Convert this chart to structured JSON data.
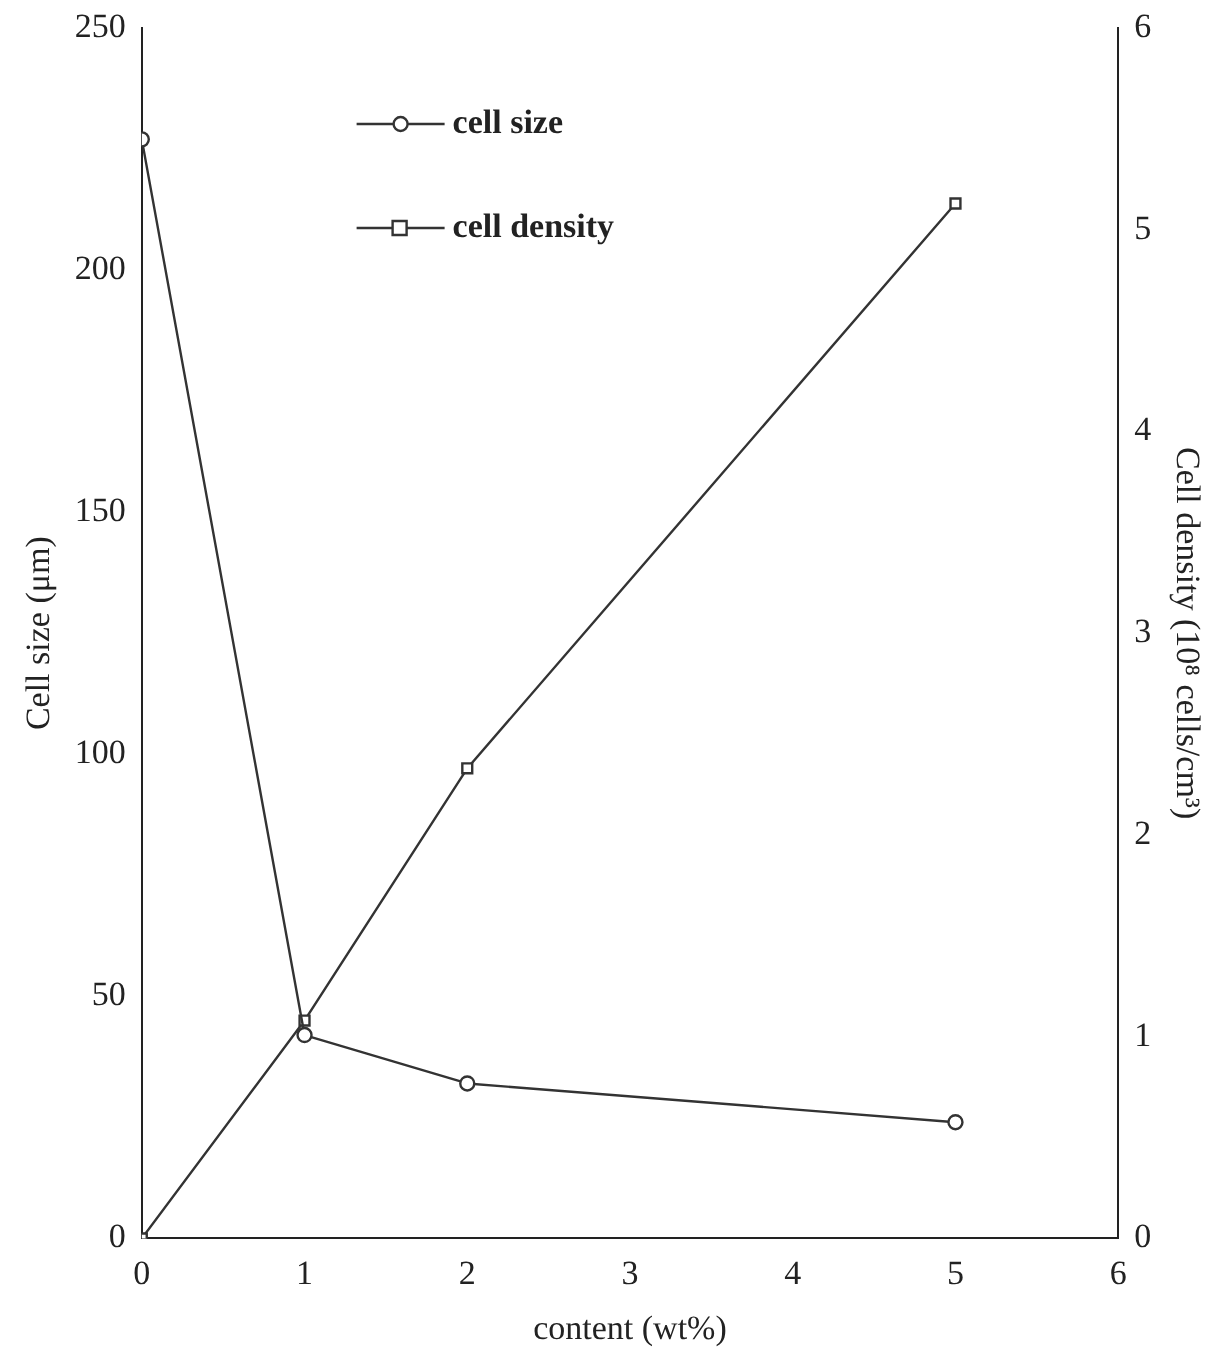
{
  "chart_data": {
    "type": "line",
    "xlabel": "content (wt%)",
    "ylabel": "Cell size (μm)",
    "y2label": "Cell density (10⁸ cells/cm³)",
    "x": [
      0,
      1,
      2,
      5
    ],
    "series": [
      {
        "name": "cell size",
        "color": "#333333",
        "values": [
          227,
          42,
          32,
          24
        ],
        "marker": "circle"
      },
      {
        "name": "cell density",
        "color": "#333333",
        "values": [
          0,
          1.08,
          2.33,
          5.13
        ],
        "marker": "square",
        "axis": "y2"
      }
    ],
    "xlim": [
      0,
      6
    ],
    "xticks": [
      0,
      1,
      2,
      3,
      4,
      5,
      6
    ],
    "ylim": [
      0,
      250
    ],
    "yticks": [
      0,
      50,
      100,
      150,
      200,
      250
    ],
    "y2lim": [
      0,
      6
    ],
    "y2ticks": [
      0,
      1,
      2,
      3,
      4,
      5,
      6
    ],
    "grid": false,
    "legend": "top",
    "line_style": "solid"
  }
}
